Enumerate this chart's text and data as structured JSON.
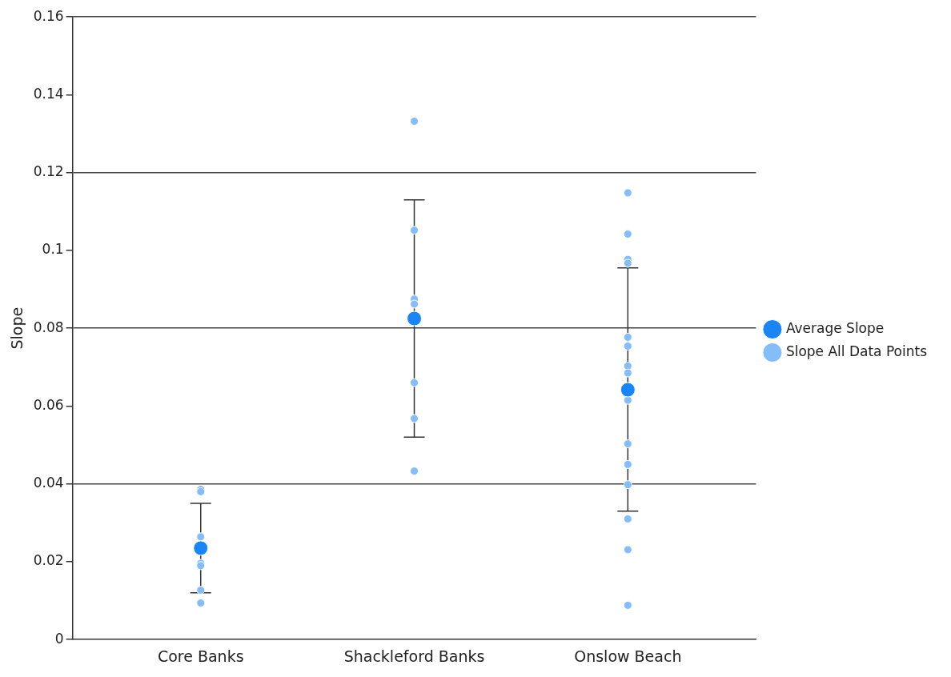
{
  "chart_data": {
    "type": "scatter",
    "ylabel": "Slope",
    "categories": [
      "Core Banks",
      "Shackleford Banks",
      "Onslow Beach"
    ],
    "ylim": [
      0,
      0.16
    ],
    "yticks": [
      0,
      0.02,
      0.04,
      0.06,
      0.08,
      0.1,
      0.12,
      0.14,
      0.16
    ],
    "grid": "y",
    "legend": "right",
    "marker": "circle",
    "series": [
      {
        "name": "Average Slope",
        "color": "#1a86f5",
        "values": [
          0.0235,
          0.0825,
          0.0642
        ],
        "errors": [
          [
            0.012,
            0.035
          ],
          [
            0.052,
            0.113
          ],
          [
            0.033,
            0.0955
          ]
        ]
      },
      {
        "name": "Slope All Data Points",
        "color": "#85bdf8",
        "x": [
          "Core Banks",
          "Core Banks",
          "Core Banks",
          "Core Banks",
          "Core Banks",
          "Core Banks",
          "Core Banks",
          "Shackleford Banks",
          "Shackleford Banks",
          "Shackleford Banks",
          "Shackleford Banks",
          "Shackleford Banks",
          "Shackleford Banks",
          "Shackleford Banks",
          "Onslow Beach",
          "Onslow Beach",
          "Onslow Beach",
          "Onslow Beach",
          "Onslow Beach",
          "Onslow Beach",
          "Onslow Beach",
          "Onslow Beach",
          "Onslow Beach",
          "Onslow Beach",
          "Onslow Beach",
          "Onslow Beach",
          "Onslow Beach",
          "Onslow Beach",
          "Onslow Beach"
        ],
        "values": [
          0.0386,
          0.038,
          0.0264,
          0.0196,
          0.019,
          0.0127,
          0.0094,
          0.1332,
          0.1052,
          0.0875,
          0.0862,
          0.066,
          0.0568,
          0.0433,
          0.1148,
          0.1042,
          0.0977,
          0.0967,
          0.0777,
          0.0754,
          0.0703,
          0.0685,
          0.0615,
          0.0503,
          0.045,
          0.0398,
          0.031,
          0.0231,
          0.0088
        ]
      }
    ]
  }
}
